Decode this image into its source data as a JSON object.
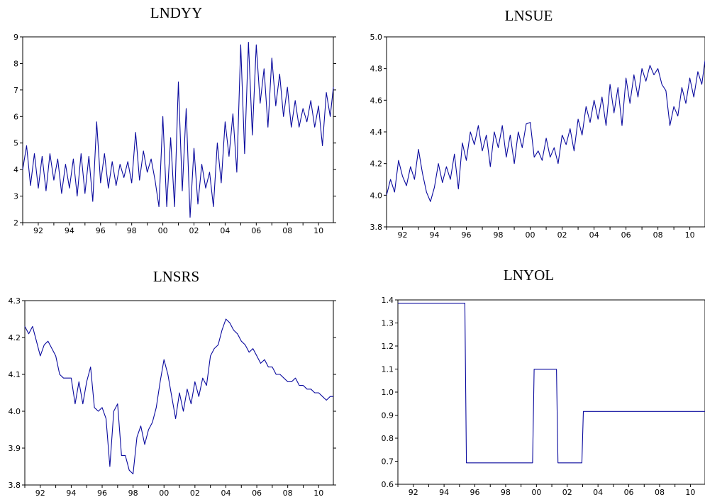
{
  "chart_data": [
    {
      "type": "line",
      "title": "LNDYY",
      "xlim": [
        1991.0,
        2010.95
      ],
      "ylim": [
        2,
        9
      ],
      "yticks": [
        "2",
        "3",
        "4",
        "5",
        "6",
        "7",
        "8",
        "9"
      ],
      "xticks": [
        "92",
        "94",
        "96",
        "98",
        "00",
        "02",
        "04",
        "06",
        "08",
        "10"
      ],
      "line_color": "#0a0a9e",
      "x": [
        1991.0,
        1991.25,
        1991.5,
        1991.75,
        1992.0,
        1992.25,
        1992.5,
        1992.75,
        1993.0,
        1993.25,
        1993.5,
        1993.75,
        1994.0,
        1994.25,
        1994.5,
        1994.75,
        1995.0,
        1995.25,
        1995.5,
        1995.75,
        1996.0,
        1996.25,
        1996.5,
        1996.75,
        1997.0,
        1997.25,
        1997.5,
        1997.75,
        1998.0,
        1998.25,
        1998.5,
        1998.75,
        1999.0,
        1999.25,
        1999.5,
        1999.75,
        2000.0,
        2000.25,
        2000.5,
        2000.75,
        2001.0,
        2001.25,
        2001.5,
        2001.75,
        2002.0,
        2002.25,
        2002.5,
        2002.75,
        2003.0,
        2003.25,
        2003.5,
        2003.75,
        2004.0,
        2004.25,
        2004.5,
        2004.75,
        2005.0,
        2005.25,
        2005.5,
        2005.75,
        2006.0,
        2006.25,
        2006.5,
        2006.75,
        2007.0,
        2007.25,
        2007.5,
        2007.75,
        2008.0,
        2008.25,
        2008.5,
        2008.75,
        2009.0,
        2009.25,
        2009.5,
        2009.75,
        2010.0,
        2010.25,
        2010.5,
        2010.75,
        2010.95
      ],
      "y": [
        4.0,
        4.9,
        3.4,
        4.6,
        3.3,
        4.5,
        3.2,
        4.6,
        3.6,
        4.4,
        3.1,
        4.2,
        3.3,
        4.4,
        3.0,
        4.6,
        3.1,
        4.5,
        2.8,
        5.8,
        3.5,
        4.6,
        3.3,
        4.3,
        3.4,
        4.2,
        3.7,
        4.3,
        3.5,
        5.4,
        3.6,
        4.7,
        3.9,
        4.4,
        3.6,
        2.6,
        6.0,
        2.6,
        5.2,
        2.6,
        7.3,
        3.2,
        6.3,
        2.2,
        4.8,
        2.7,
        4.2,
        3.3,
        3.9,
        2.6,
        5.0,
        3.5,
        5.8,
        4.5,
        6.1,
        3.9,
        8.7,
        4.6,
        8.8,
        5.3,
        8.7,
        6.5,
        7.8,
        5.6,
        8.2,
        6.4,
        7.6,
        6.0,
        7.1,
        5.6,
        6.6,
        5.6,
        6.3,
        5.8,
        6.6,
        5.6,
        6.4,
        4.9,
        6.9,
        6.0,
        7.1
      ]
    },
    {
      "type": "line",
      "title": "LNSUE",
      "xlim": [
        1991.0,
        2010.95
      ],
      "ylim": [
        3.8,
        5.0
      ],
      "yticks": [
        "3.8",
        "4.0",
        "4.2",
        "4.4",
        "4.6",
        "4.8",
        "5.0"
      ],
      "xticks": [
        "92",
        "94",
        "96",
        "98",
        "00",
        "02",
        "04",
        "06",
        "08",
        "10"
      ],
      "line_color": "#0a0a9e",
      "x": [
        1991.0,
        1991.25,
        1991.5,
        1991.75,
        1992.0,
        1992.25,
        1992.5,
        1992.75,
        1993.0,
        1993.25,
        1993.5,
        1993.75,
        1994.0,
        1994.25,
        1994.5,
        1994.75,
        1995.0,
        1995.25,
        1995.5,
        1995.75,
        1996.0,
        1996.25,
        1996.5,
        1996.75,
        1997.0,
        1997.25,
        1997.5,
        1997.75,
        1998.0,
        1998.25,
        1998.5,
        1998.75,
        1999.0,
        1999.25,
        1999.5,
        1999.75,
        2000.0,
        2000.25,
        2000.5,
        2000.75,
        2001.0,
        2001.25,
        2001.5,
        2001.75,
        2002.0,
        2002.25,
        2002.5,
        2002.75,
        2003.0,
        2003.25,
        2003.5,
        2003.75,
        2004.0,
        2004.25,
        2004.5,
        2004.75,
        2005.0,
        2005.25,
        2005.5,
        2005.75,
        2006.0,
        2006.25,
        2006.5,
        2006.75,
        2007.0,
        2007.25,
        2007.5,
        2007.75,
        2008.0,
        2008.25,
        2008.5,
        2008.75,
        2009.0,
        2009.25,
        2009.5,
        2009.75,
        2010.0,
        2010.25,
        2010.5,
        2010.75,
        2010.95
      ],
      "y": [
        4.0,
        4.1,
        4.02,
        4.22,
        4.12,
        4.06,
        4.18,
        4.1,
        4.29,
        4.14,
        4.02,
        3.96,
        4.05,
        4.2,
        4.08,
        4.18,
        4.1,
        4.26,
        4.04,
        4.33,
        4.22,
        4.4,
        4.32,
        4.44,
        4.28,
        4.38,
        4.18,
        4.4,
        4.3,
        4.44,
        4.24,
        4.38,
        4.2,
        4.4,
        4.3,
        4.45,
        4.46,
        4.24,
        4.28,
        4.22,
        4.36,
        4.24,
        4.3,
        4.2,
        4.38,
        4.32,
        4.42,
        4.28,
        4.48,
        4.38,
        4.56,
        4.46,
        4.6,
        4.48,
        4.62,
        4.44,
        4.7,
        4.52,
        4.68,
        4.44,
        4.74,
        4.58,
        4.76,
        4.62,
        4.8,
        4.72,
        4.82,
        4.76,
        4.8,
        4.7,
        4.66,
        4.44,
        4.56,
        4.5,
        4.68,
        4.58,
        4.74,
        4.62,
        4.78,
        4.7,
        4.85
      ]
    },
    {
      "type": "line",
      "title": "LNSRS",
      "xlim": [
        1991.0,
        2010.95
      ],
      "ylim": [
        3.8,
        4.3
      ],
      "yticks": [
        "3.8",
        "3.9",
        "4.0",
        "4.1",
        "4.2",
        "4.3"
      ],
      "xticks": [
        "92",
        "94",
        "96",
        "98",
        "00",
        "02",
        "04",
        "06",
        "08",
        "10"
      ],
      "line_color": "#0a0a9e",
      "x": [
        1991.0,
        1991.25,
        1991.5,
        1991.75,
        1992.0,
        1992.25,
        1992.5,
        1992.75,
        1993.0,
        1993.25,
        1993.5,
        1993.75,
        1994.0,
        1994.25,
        1994.5,
        1994.75,
        1995.0,
        1995.25,
        1995.5,
        1995.75,
        1996.0,
        1996.25,
        1996.5,
        1996.75,
        1997.0,
        1997.25,
        1997.5,
        1997.75,
        1998.0,
        1998.25,
        1998.5,
        1998.75,
        1999.0,
        1999.25,
        1999.5,
        1999.75,
        2000.0,
        2000.25,
        2000.5,
        2000.75,
        2001.0,
        2001.25,
        2001.5,
        2001.75,
        2002.0,
        2002.25,
        2002.5,
        2002.75,
        2003.0,
        2003.25,
        2003.5,
        2003.75,
        2004.0,
        2004.25,
        2004.5,
        2004.75,
        2005.0,
        2005.25,
        2005.5,
        2005.75,
        2006.0,
        2006.25,
        2006.5,
        2006.75,
        2007.0,
        2007.25,
        2007.5,
        2007.75,
        2008.0,
        2008.25,
        2008.5,
        2008.75,
        2009.0,
        2009.25,
        2009.5,
        2009.75,
        2010.0,
        2010.25,
        2010.5,
        2010.75,
        2010.95
      ],
      "y": [
        4.23,
        4.21,
        4.23,
        4.19,
        4.15,
        4.18,
        4.19,
        4.17,
        4.15,
        4.1,
        4.09,
        4.09,
        4.09,
        4.02,
        4.08,
        4.02,
        4.08,
        4.12,
        4.01,
        4.0,
        4.01,
        3.98,
        3.85,
        4.0,
        4.02,
        3.88,
        3.88,
        3.84,
        3.83,
        3.93,
        3.96,
        3.91,
        3.95,
        3.97,
        4.01,
        4.08,
        4.14,
        4.1,
        4.04,
        3.98,
        4.05,
        4.0,
        4.06,
        4.02,
        4.08,
        4.04,
        4.09,
        4.07,
        4.15,
        4.17,
        4.18,
        4.22,
        4.25,
        4.24,
        4.22,
        4.21,
        4.19,
        4.18,
        4.16,
        4.17,
        4.15,
        4.13,
        4.14,
        4.12,
        4.12,
        4.1,
        4.1,
        4.09,
        4.08,
        4.08,
        4.09,
        4.07,
        4.07,
        4.06,
        4.06,
        4.05,
        4.05,
        4.04,
        4.03,
        4.04,
        4.04
      ]
    },
    {
      "type": "line",
      "title": "LNYOL",
      "xlim": [
        1991.0,
        2010.95
      ],
      "ylim": [
        0.6,
        1.4
      ],
      "yticks": [
        "0.6",
        "0.7",
        "0.8",
        "0.9",
        "1.0",
        "1.1",
        "1.2",
        "1.3",
        "1.4"
      ],
      "xticks": [
        "92",
        "94",
        "96",
        "98",
        "00",
        "02",
        "04",
        "06",
        "08",
        "10"
      ],
      "line_color": "#0a0a9e",
      "x": [
        1991.0,
        1995.35,
        1995.45,
        1999.75,
        1999.85,
        2001.3,
        2001.4,
        2002.95,
        2003.05,
        2010.95
      ],
      "y": [
        1.386,
        1.386,
        0.693,
        0.693,
        1.099,
        1.099,
        0.693,
        0.693,
        0.916,
        0.916
      ]
    }
  ]
}
